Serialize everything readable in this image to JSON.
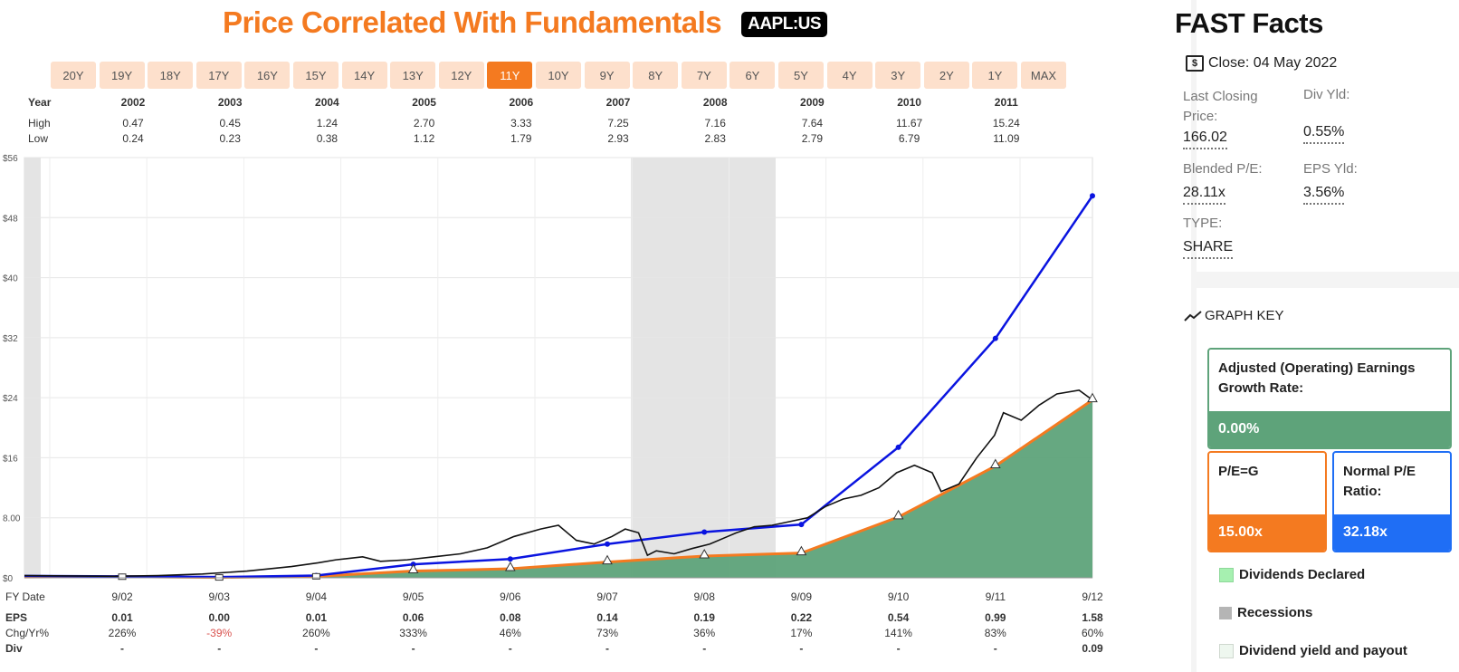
{
  "header": {
    "title": "Price Correlated With Fundamentals",
    "ticker": "AAPL:US"
  },
  "range_buttons": [
    "20Y",
    "19Y",
    "18Y",
    "17Y",
    "16Y",
    "15Y",
    "14Y",
    "13Y",
    "12Y",
    "11Y",
    "10Y",
    "9Y",
    "8Y",
    "7Y",
    "6Y",
    "5Y",
    "4Y",
    "3Y",
    "2Y",
    "1Y",
    "MAX"
  ],
  "active_range": "11Y",
  "price_table": {
    "year_label": "Year",
    "high_label": "High",
    "low_label": "Low",
    "years": [
      "2002",
      "2003",
      "2004",
      "2005",
      "2006",
      "2007",
      "2008",
      "2009",
      "2010",
      "2011"
    ],
    "high": [
      "0.47",
      "0.45",
      "1.24",
      "2.70",
      "3.33",
      "7.25",
      "7.16",
      "7.64",
      "11.67",
      "15.24"
    ],
    "low": [
      "0.24",
      "0.23",
      "0.38",
      "1.12",
      "1.79",
      "2.93",
      "2.83",
      "2.79",
      "6.79",
      "11.09"
    ]
  },
  "fy_table": {
    "fy_label": "FY Date",
    "eps_label": "EPS",
    "chg_label": "Chg/Yr%",
    "div_label": "Div",
    "dates": [
      "9/02",
      "9/03",
      "9/04",
      "9/05",
      "9/06",
      "9/07",
      "9/08",
      "9/09",
      "9/10",
      "9/11",
      "9/12"
    ],
    "eps": [
      "0.01",
      "0.00",
      "0.01",
      "0.06",
      "0.08",
      "0.14",
      "0.19",
      "0.22",
      "0.54",
      "0.99",
      "1.58"
    ],
    "chg": [
      "226%",
      "-39%",
      "260%",
      "333%",
      "46%",
      "73%",
      "36%",
      "17%",
      "141%",
      "83%",
      "60%"
    ],
    "div": [
      "-",
      "-",
      "-",
      "-",
      "-",
      "-",
      "-",
      "-",
      "-",
      "-",
      "0.09"
    ]
  },
  "chart_data": {
    "type": "line",
    "y_ticks": [
      "$0",
      "8.00",
      "$16",
      "$24",
      "$32",
      "$40",
      "$48",
      "$56"
    ],
    "ylim": [
      0,
      56
    ],
    "x_labels": [
      "9/02",
      "9/03",
      "9/04",
      "9/05",
      "9/06",
      "9/07",
      "9/08",
      "9/09",
      "9/10",
      "9/11",
      "9/12"
    ],
    "recessions": [
      [
        2001.95,
        2002.08
      ],
      [
        2007.25,
        2008.75
      ]
    ],
    "series": [
      {
        "name": "Normal P/E",
        "color": "#0a14e0",
        "points": [
          [
            2002,
            0.2
          ],
          [
            2003,
            0.1
          ],
          [
            2004,
            0.3
          ],
          [
            2005,
            1.8
          ],
          [
            2006,
            2.5
          ],
          [
            2007,
            4.5
          ],
          [
            2008,
            6.1
          ],
          [
            2009,
            7.1
          ],
          [
            2010,
            17.4
          ],
          [
            2011,
            31.9
          ],
          [
            2012,
            50.9
          ]
        ]
      },
      {
        "name": "P/E=G",
        "color": "#f47a20",
        "points": [
          [
            2002,
            0.15
          ],
          [
            2003,
            0.05
          ],
          [
            2004,
            0.2
          ],
          [
            2005,
            0.9
          ],
          [
            2006,
            1.2
          ],
          [
            2007,
            2.1
          ],
          [
            2008,
            2.9
          ],
          [
            2009,
            3.3
          ],
          [
            2010,
            8.1
          ],
          [
            2011,
            14.9
          ],
          [
            2012,
            23.7
          ]
        ]
      },
      {
        "name": "Price",
        "color": "#111111",
        "points": [
          [
            2002,
            0.3
          ],
          [
            2002.5,
            0.25
          ],
          [
            2003,
            0.2
          ],
          [
            2003.5,
            0.3
          ],
          [
            2004,
            0.5
          ],
          [
            2004.5,
            0.9
          ],
          [
            2005,
            1.5
          ],
          [
            2005.3,
            2.0
          ],
          [
            2005.5,
            2.4
          ],
          [
            2005.8,
            2.8
          ],
          [
            2006,
            2.2
          ],
          [
            2006.3,
            2.4
          ],
          [
            2006.6,
            2.8
          ],
          [
            2006.9,
            3.2
          ],
          [
            2007.2,
            4.0
          ],
          [
            2007.5,
            5.5
          ],
          [
            2007.8,
            6.5
          ],
          [
            2008.0,
            7.0
          ],
          [
            2008.2,
            5.0
          ],
          [
            2008.4,
            4.5
          ],
          [
            2008.6,
            5.5
          ],
          [
            2008.75,
            6.5
          ],
          [
            2008.9,
            6.0
          ],
          [
            2009.0,
            3.0
          ],
          [
            2009.1,
            3.6
          ],
          [
            2009.3,
            3.2
          ],
          [
            2009.5,
            3.9
          ],
          [
            2009.7,
            4.5
          ],
          [
            2009.9,
            5.5
          ],
          [
            2010.0,
            6.0
          ],
          [
            2010.2,
            6.8
          ],
          [
            2010.4,
            7.0
          ],
          [
            2010.6,
            7.5
          ],
          [
            2010.8,
            8.0
          ],
          [
            2011.0,
            9.5
          ],
          [
            2011.2,
            10.5
          ],
          [
            2011.4,
            11.0
          ],
          [
            2011.6,
            12.0
          ],
          [
            2011.8,
            14.0
          ],
          [
            2012.0,
            15.0
          ],
          [
            2012.2,
            14.0
          ],
          [
            2012.3,
            11.5
          ],
          [
            2012.5,
            12.5
          ],
          [
            2012.7,
            16.0
          ],
          [
            2012.9,
            19.0
          ],
          [
            2013.0,
            22.0
          ],
          [
            2013.2,
            21.0
          ],
          [
            2013.4,
            23.0
          ],
          [
            2013.6,
            24.5
          ],
          [
            2013.85,
            25.0
          ],
          [
            2014,
            23.7
          ]
        ]
      }
    ],
    "eps_markers_x": [
      "9/02",
      "9/03",
      "9/04",
      "9/05",
      "9/06",
      "9/07",
      "9/08",
      "9/09",
      "9/10",
      "9/11",
      "9/12"
    ]
  },
  "fast_facts": {
    "title": "FAST Facts",
    "close_label": "Close: 04 May 2022",
    "last_closing_label": "Last Closing Price:",
    "last_closing_value": "166.02",
    "div_yld_label": "Div Yld:",
    "div_yld_value": "0.55%",
    "blended_pe_label": "Blended P/E:",
    "blended_pe_value": "28.11x",
    "eps_yld_label": "EPS Yld:",
    "eps_yld_value": "3.56%",
    "type_label": "TYPE:",
    "type_value": "SHARE"
  },
  "graph_key": {
    "title": "GRAPH KEY",
    "adjusted_label": "Adjusted (Operating) Earnings Growth Rate:",
    "adjusted_value": "0.00%",
    "adjusted_color": "#5ea37a",
    "peg_label": "P/E=G",
    "peg_value": "15.00x",
    "peg_color": "#f47a20",
    "normal_label": "Normal P/E Ratio:",
    "normal_value": "32.18x",
    "normal_color": "#1f6ef5",
    "legend": [
      "Dividends Declared",
      "Recessions",
      "Dividend yield and payout"
    ]
  }
}
